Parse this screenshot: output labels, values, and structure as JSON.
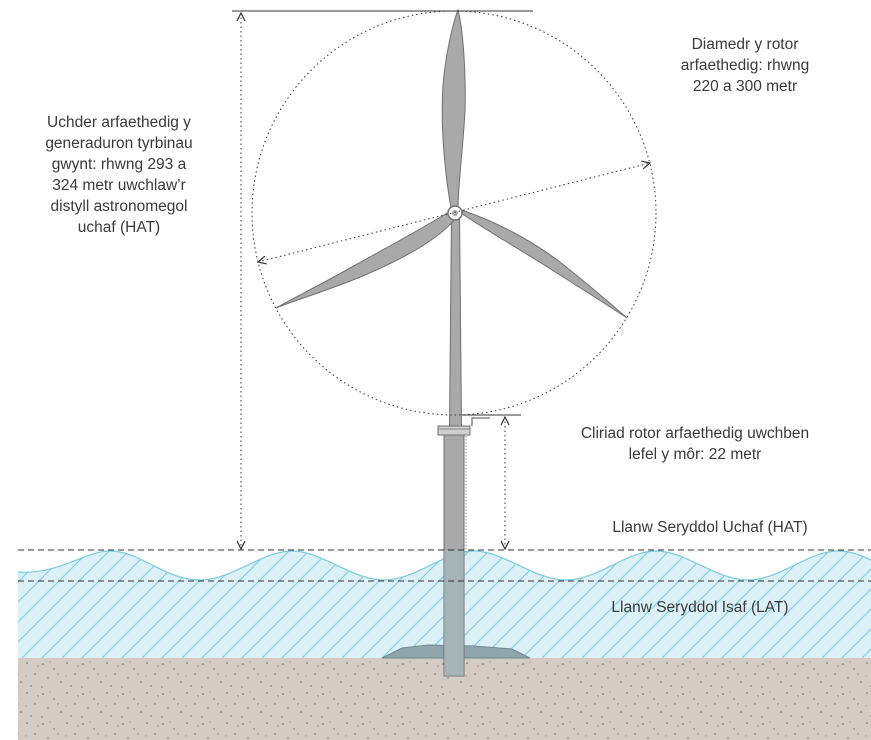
{
  "labels": {
    "height": "Uchder arfaethedig y\ngeneraduron tyrbinau\ngwynt: rhwng 293 a\n324 metr uwchlaw’r\ndistyll astronomegol\nuchaf (HAT)",
    "diameter": "Diamedr y rotor\narfaethedig: rhwng\n220 a 300 metr",
    "clearance": "Cliriad rotor arfaethedig uwchben\nlefel y môr: 22 metr",
    "hat": "Llanw Seryddol Uchaf (HAT)",
    "lat": "Llanw Seryddol Isaf (LAT)"
  },
  "colors": {
    "text": "#3a3a3a",
    "water": "#dcf1f7",
    "water_hatch": "#7ccbe0",
    "seabed": "#d3cbc4",
    "turbine": "#a9a9a9",
    "turbine_outline": "#707070",
    "dimension_line": "#333333"
  }
}
